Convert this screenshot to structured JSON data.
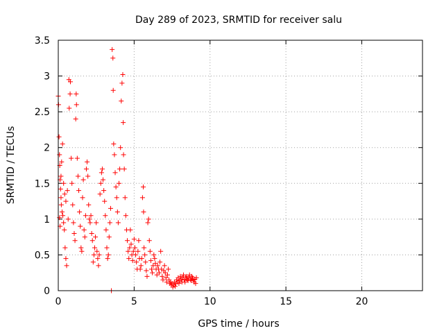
{
  "chart_data": {
    "type": "scatter",
    "title": "Day 289 of 2023, SRMTID for receiver salu",
    "xlabel": "GPS time / hours",
    "ylabel": "SRMTID / TECUs",
    "xlim": [
      0,
      24
    ],
    "ylim": [
      0,
      3.5
    ],
    "xticks": [
      0,
      5,
      10,
      15,
      20
    ],
    "xtick_labels": [
      "0",
      "5",
      "10",
      "15",
      "20"
    ],
    "yticks": [
      0,
      0.5,
      1,
      1.5,
      2,
      2.5,
      3,
      3.5
    ],
    "ytick_labels": [
      "0",
      "0.5",
      "1",
      "1.5",
      "2",
      "2.5",
      "3",
      "3.5"
    ],
    "grid": true,
    "marker": "+",
    "color": "#ff0000",
    "series": [
      {
        "name": "SRMTID",
        "points": [
          [
            0.0,
            2.72
          ],
          [
            0.02,
            2.6
          ],
          [
            0.05,
            2.15
          ],
          [
            0.08,
            1.9
          ],
          [
            0.1,
            1.75
          ],
          [
            0.12,
            1.55
          ],
          [
            0.15,
            1.42
          ],
          [
            0.18,
            1.3
          ],
          [
            0.2,
            1.2
          ],
          [
            0.25,
            1.1
          ],
          [
            0.3,
            1.05
          ],
          [
            0.35,
            0.95
          ],
          [
            0.4,
            0.85
          ],
          [
            0.45,
            0.6
          ],
          [
            0.5,
            0.45
          ],
          [
            0.55,
            0.35
          ],
          [
            0.08,
            1.02
          ],
          [
            0.12,
            0.9
          ],
          [
            0.18,
            1.6
          ],
          [
            0.22,
            1.8
          ],
          [
            0.28,
            2.05
          ],
          [
            0.35,
            1.5
          ],
          [
            0.42,
            1.35
          ],
          [
            0.5,
            1.25
          ],
          [
            0.6,
            1.4
          ],
          [
            0.65,
            1.0
          ],
          [
            0.7,
            2.95
          ],
          [
            0.72,
            2.55
          ],
          [
            0.78,
            2.75
          ],
          [
            0.8,
            2.92
          ],
          [
            0.85,
            1.85
          ],
          [
            0.9,
            1.5
          ],
          [
            0.95,
            1.2
          ],
          [
            1.0,
            0.95
          ],
          [
            1.05,
            0.8
          ],
          [
            1.1,
            0.7
          ],
          [
            1.15,
            2.4
          ],
          [
            1.18,
            2.75
          ],
          [
            1.2,
            2.6
          ],
          [
            1.25,
            1.85
          ],
          [
            1.3,
            1.6
          ],
          [
            1.35,
            1.4
          ],
          [
            1.4,
            1.1
          ],
          [
            1.45,
            0.9
          ],
          [
            1.5,
            0.6
          ],
          [
            1.55,
            0.55
          ],
          [
            1.6,
            1.3
          ],
          [
            1.65,
            1.55
          ],
          [
            1.7,
            0.85
          ],
          [
            1.75,
            0.75
          ],
          [
            1.8,
            1.05
          ],
          [
            1.85,
            1.7
          ],
          [
            1.9,
            1.8
          ],
          [
            1.95,
            1.6
          ],
          [
            2.0,
            1.2
          ],
          [
            2.05,
            1.0
          ],
          [
            2.1,
            0.95
          ],
          [
            2.15,
            1.05
          ],
          [
            2.2,
            0.8
          ],
          [
            2.25,
            0.7
          ],
          [
            2.3,
            0.4
          ],
          [
            2.35,
            0.5
          ],
          [
            2.4,
            0.6
          ],
          [
            2.45,
            0.75
          ],
          [
            2.5,
            0.95
          ],
          [
            2.55,
            0.55
          ],
          [
            2.6,
            0.45
          ],
          [
            2.65,
            0.35
          ],
          [
            2.7,
            0.5
          ],
          [
            2.75,
            1.35
          ],
          [
            2.8,
            1.5
          ],
          [
            2.85,
            1.65
          ],
          [
            2.9,
            1.7
          ],
          [
            2.95,
            1.55
          ],
          [
            3.0,
            1.4
          ],
          [
            3.05,
            1.25
          ],
          [
            3.1,
            1.05
          ],
          [
            3.15,
            0.85
          ],
          [
            3.2,
            0.6
          ],
          [
            3.25,
            0.45
          ],
          [
            3.3,
            0.5
          ],
          [
            3.35,
            0.75
          ],
          [
            3.4,
            0.95
          ],
          [
            3.45,
            1.15
          ],
          [
            3.5,
            0.0
          ],
          [
            3.55,
            3.37
          ],
          [
            3.6,
            3.25
          ],
          [
            3.62,
            2.8
          ],
          [
            3.65,
            2.05
          ],
          [
            3.7,
            1.9
          ],
          [
            3.75,
            1.65
          ],
          [
            3.8,
            1.45
          ],
          [
            3.85,
            1.3
          ],
          [
            3.9,
            1.1
          ],
          [
            3.95,
            0.95
          ],
          [
            4.0,
            1.5
          ],
          [
            4.05,
            1.7
          ],
          [
            4.1,
            2.0
          ],
          [
            4.15,
            2.65
          ],
          [
            4.2,
            2.9
          ],
          [
            4.25,
            3.02
          ],
          [
            4.28,
            2.35
          ],
          [
            4.3,
            1.9
          ],
          [
            4.35,
            1.7
          ],
          [
            4.4,
            1.3
          ],
          [
            4.45,
            1.05
          ],
          [
            4.5,
            0.85
          ],
          [
            4.55,
            0.7
          ],
          [
            4.6,
            0.55
          ],
          [
            4.65,
            0.45
          ],
          [
            4.7,
            0.6
          ],
          [
            4.75,
            0.85
          ],
          [
            4.8,
            0.65
          ],
          [
            4.85,
            0.5
          ],
          [
            4.9,
            0.42
          ],
          [
            4.95,
            0.55
          ],
          [
            5.0,
            0.72
          ],
          [
            5.05,
            0.6
          ],
          [
            5.1,
            0.5
          ],
          [
            5.15,
            0.4
          ],
          [
            5.2,
            0.3
          ],
          [
            5.25,
            0.55
          ],
          [
            5.3,
            0.7
          ],
          [
            5.35,
            0.45
          ],
          [
            5.4,
            0.3
          ],
          [
            5.45,
            0.35
          ],
          [
            5.5,
            0.45
          ],
          [
            5.55,
            1.3
          ],
          [
            5.6,
            1.45
          ],
          [
            5.62,
            1.1
          ],
          [
            5.65,
            0.6
          ],
          [
            5.7,
            0.5
          ],
          [
            5.75,
            0.4
          ],
          [
            5.8,
            0.28
          ],
          [
            5.85,
            0.2
          ],
          [
            5.9,
            0.95
          ],
          [
            5.95,
            1.0
          ],
          [
            6.0,
            0.7
          ],
          [
            6.05,
            0.55
          ],
          [
            6.1,
            0.42
          ],
          [
            6.15,
            0.3
          ],
          [
            6.2,
            0.25
          ],
          [
            6.25,
            0.35
          ],
          [
            6.3,
            0.5
          ],
          [
            6.35,
            0.45
          ],
          [
            6.4,
            0.38
          ],
          [
            6.45,
            0.3
          ],
          [
            6.5,
            0.22
          ],
          [
            6.55,
            0.35
          ],
          [
            6.6,
            0.3
          ],
          [
            6.65,
            0.25
          ],
          [
            6.7,
            0.4
          ],
          [
            6.75,
            0.55
          ],
          [
            6.8,
            0.3
          ],
          [
            6.85,
            0.2
          ],
          [
            6.9,
            0.15
          ],
          [
            6.95,
            0.28
          ],
          [
            7.0,
            0.35
          ],
          [
            7.05,
            0.25
          ],
          [
            7.1,
            0.18
          ],
          [
            7.15,
            0.12
          ],
          [
            7.2,
            0.22
          ],
          [
            7.25,
            0.3
          ],
          [
            7.3,
            0.15
          ],
          [
            7.35,
            0.1
          ],
          [
            7.4,
            0.12
          ],
          [
            7.45,
            0.08
          ],
          [
            7.5,
            0.1
          ],
          [
            7.55,
            0.05
          ],
          [
            7.6,
            0.08
          ],
          [
            7.65,
            0.12
          ],
          [
            7.7,
            0.06
          ],
          [
            7.75,
            0.1
          ],
          [
            7.8,
            0.15
          ],
          [
            7.85,
            0.12
          ],
          [
            7.9,
            0.18
          ],
          [
            7.95,
            0.1
          ],
          [
            8.0,
            0.14
          ],
          [
            8.05,
            0.2
          ],
          [
            8.1,
            0.16
          ],
          [
            8.15,
            0.12
          ],
          [
            8.2,
            0.18
          ],
          [
            8.25,
            0.22
          ],
          [
            8.3,
            0.15
          ],
          [
            8.35,
            0.12
          ],
          [
            8.4,
            0.18
          ],
          [
            8.45,
            0.2
          ],
          [
            8.5,
            0.16
          ],
          [
            8.55,
            0.14
          ],
          [
            8.6,
            0.18
          ],
          [
            8.65,
            0.22
          ],
          [
            8.7,
            0.16
          ],
          [
            8.75,
            0.14
          ],
          [
            8.8,
            0.2
          ],
          [
            8.85,
            0.18
          ],
          [
            8.9,
            0.15
          ],
          [
            8.95,
            0.12
          ],
          [
            9.0,
            0.16
          ],
          [
            9.05,
            0.1
          ],
          [
            9.1,
            0.18
          ]
        ]
      }
    ]
  }
}
